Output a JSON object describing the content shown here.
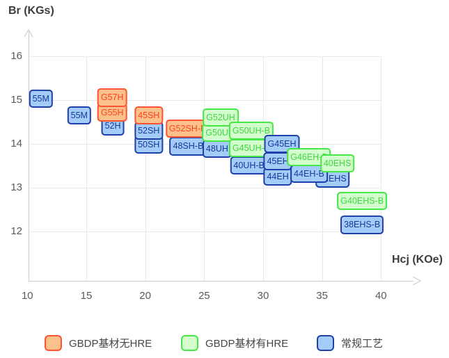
{
  "title_y": "Br (KGs)",
  "title_x": "Hcj (KOe)",
  "categories": {
    "gbdp_no_hre": {
      "label": "GBDP基材无HRE",
      "fill": "#fbc08c",
      "border": "#ff5333",
      "text": "#ff4318"
    },
    "gbdp_hre": {
      "label": "GBDP基材有HRE",
      "fill": "#d3fdcd",
      "border": "#46e846",
      "text": "#3fd83f"
    },
    "conventional": {
      "label": "常规工艺",
      "fill": "#a5cbf8",
      "border": "#1e42ab",
      "text": "#143a9b"
    }
  },
  "legend_order": [
    "gbdp_no_hre",
    "gbdp_hre",
    "conventional"
  ],
  "chart_data": {
    "type": "scatter",
    "title": "",
    "xlabel": "Hcj (KOe)",
    "ylabel": "Br (KGs)",
    "x_ticks": [
      10,
      15,
      20,
      25,
      30,
      35,
      40
    ],
    "y_ticks": [
      16,
      15,
      14,
      13,
      12
    ],
    "xlim": [
      10,
      43
    ],
    "ylim": [
      11.7,
      16.6
    ],
    "grid": true,
    "legend_position": "bottom",
    "points": [
      {
        "label": "55M",
        "hcj": 11.15,
        "br": 15.02,
        "category": "conventional"
      },
      {
        "label": "55M",
        "hcj": 14.4,
        "br": 14.65,
        "category": "conventional"
      },
      {
        "label": "52H",
        "hcj": 17.25,
        "br": 14.4,
        "category": "conventional"
      },
      {
        "label": "G55H",
        "hcj": 17.2,
        "br": 14.71,
        "category": "gbdp_no_hre"
      },
      {
        "label": "G57H",
        "hcj": 17.2,
        "br": 15.05,
        "category": "gbdp_no_hre"
      },
      {
        "label": "50SH",
        "hcj": 20.3,
        "br": 13.98,
        "category": "conventional"
      },
      {
        "label": "52SH",
        "hcj": 20.3,
        "br": 14.3,
        "category": "conventional"
      },
      {
        "label": "45SH",
        "hcj": 20.3,
        "br": 14.64,
        "category": "gbdp_no_hre"
      },
      {
        "label": "48SH-B",
        "hcj": 23.65,
        "br": 13.94,
        "category": "conventional"
      },
      {
        "label": "G52SH-B",
        "hcj": 23.6,
        "br": 14.35,
        "category": "gbdp_no_hre"
      },
      {
        "label": "48UH",
        "hcj": 26.1,
        "br": 13.88,
        "category": "conventional"
      },
      {
        "label": "G50UH",
        "hcj": 26.35,
        "br": 14.25,
        "category": "gbdp_hre"
      },
      {
        "label": "G52UH",
        "hcj": 26.4,
        "br": 14.6,
        "category": "gbdp_hre"
      },
      {
        "label": "40UH-B",
        "hcj": 28.8,
        "br": 13.5,
        "category": "conventional"
      },
      {
        "label": "G45UH-B",
        "hcj": 29.0,
        "br": 13.9,
        "category": "gbdp_hre"
      },
      {
        "label": "G50UH-B",
        "hcj": 29.0,
        "br": 14.3,
        "category": "gbdp_hre"
      },
      {
        "label": "44EH",
        "hcj": 31.25,
        "br": 13.25,
        "category": "conventional"
      },
      {
        "label": "45EH",
        "hcj": 31.25,
        "br": 13.6,
        "category": "conventional"
      },
      {
        "label": "G45EH",
        "hcj": 31.6,
        "br": 14.0,
        "category": "conventional"
      },
      {
        "label": "42EHS",
        "hcj": 35.9,
        "br": 13.2,
        "category": "conventional"
      },
      {
        "label": "44EH-B",
        "hcj": 33.9,
        "br": 13.32,
        "category": "conventional"
      },
      {
        "label": "G46EH-B",
        "hcj": 33.9,
        "br": 13.7,
        "category": "gbdp_hre"
      },
      {
        "label": "40EHS",
        "hcj": 36.3,
        "br": 13.55,
        "category": "gbdp_hre"
      },
      {
        "label": "G40EHS-B",
        "hcj": 38.4,
        "br": 12.7,
        "category": "gbdp_hre"
      },
      {
        "label": "38EHS-B",
        "hcj": 38.4,
        "br": 12.15,
        "category": "conventional"
      }
    ]
  }
}
